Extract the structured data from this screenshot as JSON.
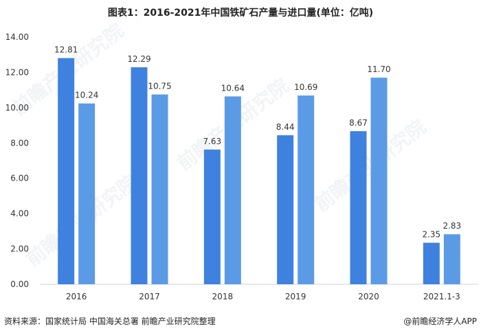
{
  "title": "图表1：2016-2021年中国铁矿石产量与进口量(单位：亿吨)",
  "source": "资料来源：国家统计局 中国海关总署 前瞻产业研究院整理",
  "credit": "@前瞻经济学人APP",
  "watermark": "前瞻产业研究院",
  "chart_data": {
    "type": "bar",
    "categories": [
      "2016",
      "2017",
      "2018",
      "2019",
      "2020",
      "2021.1-3"
    ],
    "series": [
      {
        "name": "",
        "color": "#3f81df",
        "values": [
          12.81,
          12.29,
          7.63,
          8.44,
          8.67,
          2.35
        ]
      },
      {
        "name": "",
        "color": "#5b9be6",
        "values": [
          10.24,
          10.75,
          10.64,
          10.69,
          11.7,
          2.83
        ]
      }
    ],
    "yticks": [
      "0.00",
      "2.00",
      "4.00",
      "6.00",
      "8.00",
      "10.00",
      "12.00",
      "14.00"
    ],
    "ylim": [
      0,
      14
    ],
    "data_labels": [
      [
        "12.81",
        "12.29",
        "7.63",
        "8.44",
        "8.67",
        "2.35"
      ],
      [
        "10.24",
        "10.75",
        "10.64",
        "10.69",
        "11.70",
        "2.83"
      ]
    ],
    "grid": false
  }
}
